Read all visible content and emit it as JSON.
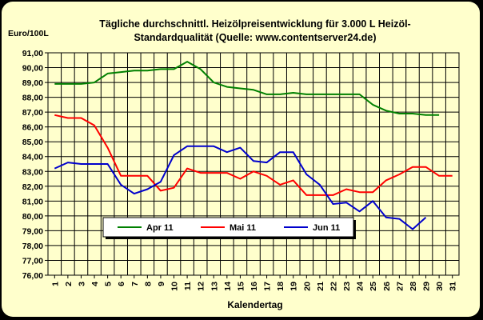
{
  "chart_data": {
    "type": "line",
    "title_line1": "Tägliche durchschnittl. Heizölpreisentwicklung für 3.000 L Heizöl-",
    "title_line2": "Standardqualität (Quelle: www.contentserver24.de)",
    "ylabel": "Euro/100L",
    "xlabel": "Kalendertag",
    "ylim": [
      76,
      91
    ],
    "y_ticks": [
      "91,00",
      "90,00",
      "89,00",
      "88,00",
      "87,00",
      "86,00",
      "85,00",
      "84,00",
      "83,00",
      "82,00",
      "81,00",
      "80,00",
      "79,00",
      "78,00",
      "77,00",
      "76,00"
    ],
    "x_ticks": [
      "1",
      "2",
      "3",
      "4",
      "5",
      "6",
      "7",
      "8",
      "9",
      "10",
      "11",
      "12",
      "13",
      "14",
      "15",
      "16",
      "17",
      "18",
      "19",
      "20",
      "21",
      "22",
      "23",
      "24",
      "25",
      "26",
      "27",
      "28",
      "29",
      "30",
      "31"
    ],
    "grid": true,
    "legend_position": "lower-left",
    "series": [
      {
        "name": "Apr 11",
        "color": "#008000",
        "x": [
          1,
          2,
          3,
          4,
          5,
          6,
          7,
          8,
          9,
          10,
          11,
          12,
          13,
          14,
          15,
          16,
          17,
          18,
          19,
          20,
          21,
          22,
          23,
          24,
          25,
          26,
          27,
          28,
          29,
          30
        ],
        "values": [
          88.9,
          88.9,
          88.9,
          89.0,
          89.6,
          89.7,
          89.8,
          89.8,
          89.9,
          89.9,
          90.4,
          89.9,
          89.0,
          88.7,
          88.6,
          88.5,
          88.2,
          88.2,
          88.3,
          88.2,
          88.2,
          88.2,
          88.2,
          88.2,
          87.5,
          87.1,
          86.9,
          86.9,
          86.8,
          86.8
        ]
      },
      {
        "name": "Mai 11",
        "color": "#ff0000",
        "x": [
          1,
          2,
          3,
          4,
          5,
          6,
          7,
          8,
          9,
          10,
          11,
          12,
          13,
          14,
          15,
          16,
          17,
          18,
          19,
          20,
          21,
          22,
          23,
          24,
          25,
          26,
          27,
          28,
          29,
          30,
          31
        ],
        "values": [
          86.8,
          86.6,
          86.6,
          86.1,
          84.6,
          82.7,
          82.7,
          82.7,
          81.7,
          81.9,
          83.2,
          82.9,
          82.9,
          82.9,
          82.5,
          83.0,
          82.7,
          82.1,
          82.4,
          81.4,
          81.4,
          81.4,
          81.8,
          81.6,
          81.6,
          82.4,
          82.8,
          83.3,
          83.3,
          82.7,
          82.7
        ]
      },
      {
        "name": "Jun 11",
        "color": "#0000cc",
        "x": [
          1,
          2,
          3,
          4,
          5,
          6,
          7,
          8,
          9,
          10,
          11,
          12,
          13,
          14,
          15,
          16,
          17,
          18,
          19,
          20,
          21,
          22,
          23,
          24,
          25,
          26,
          27,
          28,
          29
        ],
        "values": [
          83.2,
          83.6,
          83.5,
          83.5,
          83.5,
          82.1,
          81.5,
          81.8,
          82.3,
          84.1,
          84.7,
          84.7,
          84.7,
          84.3,
          84.6,
          83.7,
          83.6,
          84.3,
          84.3,
          82.8,
          82.1,
          80.8,
          80.9,
          80.3,
          81.0,
          79.9,
          79.8,
          79.1,
          79.9
        ]
      }
    ]
  }
}
